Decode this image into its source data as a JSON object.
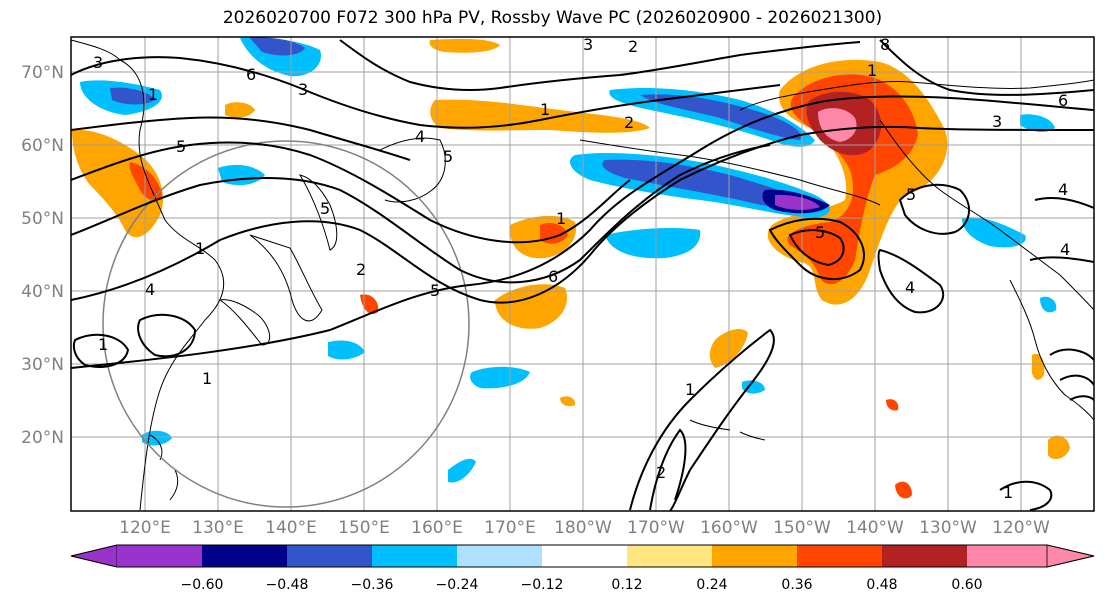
{
  "title": "2026020700 F072 300 hPa PV, Rossby Wave PC (2026020900 - 2026021300)",
  "lat_labels": [
    "70°N",
    "60°N",
    "50°N",
    "40°N",
    "30°N",
    "20°N"
  ],
  "lon_labels": [
    "120°E",
    "130°E",
    "140°E",
    "150°E",
    "160°E",
    "170°E",
    "180°W",
    "170°W",
    "160°W",
    "150°W",
    "140°W",
    "130°W",
    "120°W"
  ],
  "colorbar": {
    "ticks": [
      "−0.60",
      "−0.48",
      "−0.36",
      "−0.24",
      "−0.12",
      "0.12",
      "0.24",
      "0.36",
      "0.48",
      "0.60"
    ],
    "colors": [
      "#9933cc",
      "#00008b",
      "#3355cc",
      "#00bfff",
      "#aee0ff",
      "#ffffff",
      "#ffe680",
      "#ffa500",
      "#ff4500",
      "#b22222",
      "#ff88aa"
    ]
  },
  "contour_labels": [
    "3",
    "2",
    "3",
    "8",
    "1",
    "6",
    "3",
    "4",
    "1",
    "2",
    "4",
    "6",
    "1",
    "5",
    "5",
    "3",
    "1",
    "5",
    "4",
    "5",
    "1",
    "5",
    "6",
    "5",
    "1",
    "2",
    "1",
    "1",
    "2",
    "1",
    "4",
    "4"
  ],
  "colors": {
    "frame": "#000000",
    "grid": "#a0a0a0",
    "contour": "#000000",
    "coast": "#000000"
  }
}
